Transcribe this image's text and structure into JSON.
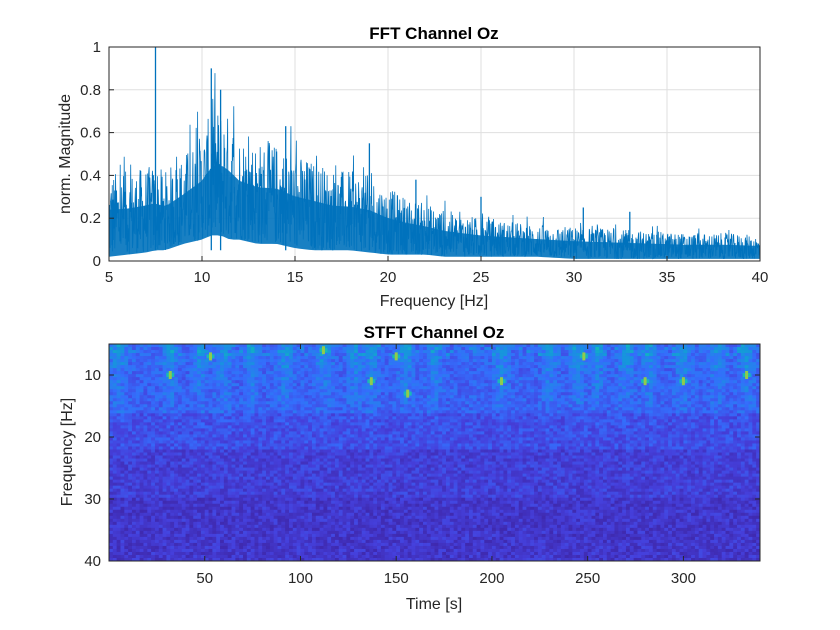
{
  "chart_data": [
    {
      "type": "line",
      "title": "FFT Channel Oz",
      "xlabel": "Frequency [Hz]",
      "ylabel": "norm. Magnitude",
      "xlim": [
        5,
        40
      ],
      "ylim": [
        0,
        1
      ],
      "xticks": [
        "5",
        "10",
        "15",
        "20",
        "25",
        "30",
        "35",
        "40"
      ],
      "yticks": [
        "0",
        "0.2",
        "0.4",
        "0.6",
        "0.8",
        "1"
      ],
      "grid": true,
      "line_color": "#0072bd",
      "envelope": {
        "freq": [
          5,
          6,
          7,
          7.5,
          8,
          9,
          10,
          10.5,
          11,
          11.5,
          12,
          13,
          14,
          15,
          16,
          17,
          18,
          19,
          20,
          21,
          22,
          23,
          24,
          25,
          26,
          28,
          30,
          32,
          34,
          36,
          38,
          40
        ],
        "upper": [
          0.42,
          0.42,
          0.44,
          0.45,
          0.42,
          0.5,
          0.6,
          0.7,
          0.72,
          0.68,
          0.6,
          0.56,
          0.55,
          0.5,
          0.47,
          0.43,
          0.42,
          0.4,
          0.34,
          0.3,
          0.27,
          0.24,
          0.22,
          0.2,
          0.19,
          0.17,
          0.16,
          0.15,
          0.14,
          0.13,
          0.13,
          0.12
        ],
        "lower": [
          0.02,
          0.03,
          0.04,
          0.05,
          0.05,
          0.08,
          0.1,
          0.12,
          0.12,
          0.1,
          0.1,
          0.08,
          0.08,
          0.06,
          0.05,
          0.05,
          0.05,
          0.04,
          0.03,
          0.03,
          0.03,
          0.02,
          0.02,
          0.02,
          0.02,
          0.02,
          0.01,
          0.01,
          0.01,
          0.01,
          0.01,
          0.01
        ]
      },
      "peaks": [
        {
          "x": 7.5,
          "y": 1.0
        },
        {
          "x": 10.5,
          "y": 0.9
        },
        {
          "x": 11.0,
          "y": 0.8
        },
        {
          "x": 14.5,
          "y": 0.63
        },
        {
          "x": 19.0,
          "y": 0.55
        },
        {
          "x": 21.5,
          "y": 0.38
        },
        {
          "x": 25.0,
          "y": 0.3
        },
        {
          "x": 30.5,
          "y": 0.25
        },
        {
          "x": 33.0,
          "y": 0.23
        }
      ]
    },
    {
      "type": "heatmap",
      "title": "STFT Channel Oz",
      "xlabel": "Time [s]",
      "ylabel": "Frequency [Hz]",
      "xlim": [
        0,
        340
      ],
      "ylim": [
        5,
        40
      ],
      "y_reversed": true,
      "xticks": [
        "50",
        "100",
        "150",
        "200",
        "250",
        "300"
      ],
      "yticks": [
        "10",
        "20",
        "30",
        "40"
      ],
      "colormap": "parula",
      "events_time": [
        5,
        32,
        48,
        60,
        75,
        92,
        112,
        128,
        137,
        155,
        170,
        205,
        230,
        245,
        255,
        270,
        282,
        300,
        318,
        333
      ],
      "highlights": [
        {
          "t": 32,
          "f": 10
        },
        {
          "t": 53,
          "f": 7
        },
        {
          "t": 112,
          "f": 6
        },
        {
          "t": 137,
          "f": 11
        },
        {
          "t": 150,
          "f": 7
        },
        {
          "t": 156,
          "f": 13
        },
        {
          "t": 205,
          "f": 11
        },
        {
          "t": 248,
          "f": 7
        },
        {
          "t": 280,
          "f": 11
        },
        {
          "t": 300,
          "f": 11
        },
        {
          "t": 333,
          "f": 10
        }
      ]
    }
  ]
}
